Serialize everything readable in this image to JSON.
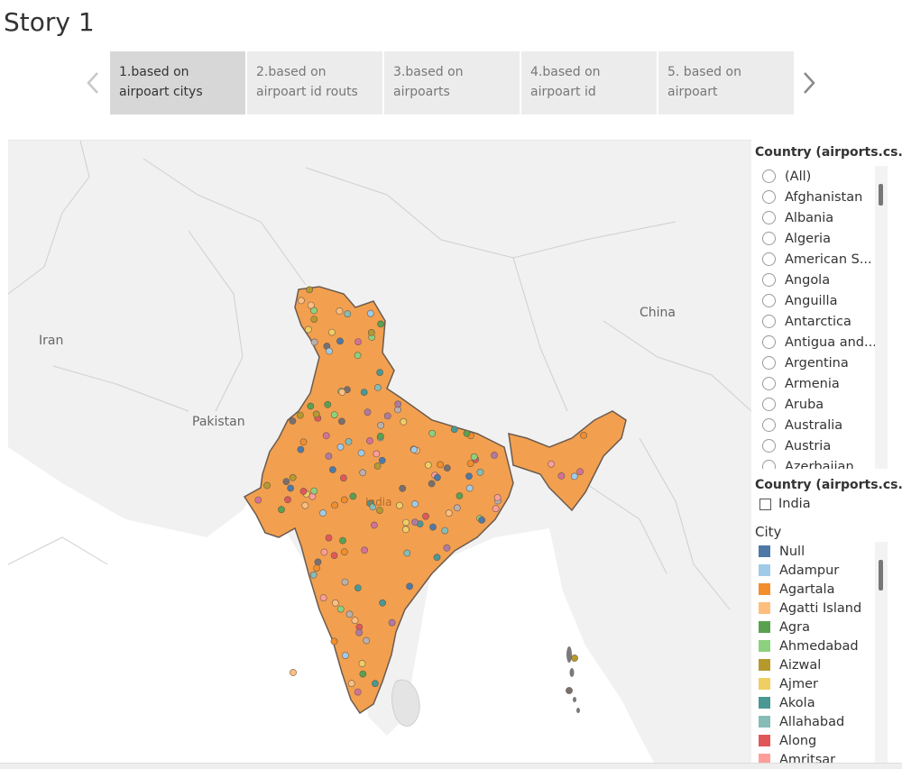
{
  "story": {
    "title": "Story 1"
  },
  "tabs": [
    {
      "line1": "1.based on",
      "line2": "airpoart citys",
      "active": true
    },
    {
      "line1": "2.based on",
      "line2": "airpoart id routs",
      "active": false
    },
    {
      "line1": "3.based on",
      "line2": "airpoarts",
      "active": false
    },
    {
      "line1": "4.based on",
      "line2": "airpoart id",
      "active": false
    },
    {
      "line1": "5. based on",
      "line2": "airpoart",
      "active": false
    }
  ],
  "map": {
    "labels": {
      "iran": "Iran",
      "pakistan": "Pakistan",
      "china": "China",
      "india": "India"
    },
    "india_fill": "#f2a04f",
    "background": "#f1f1f1",
    "marker_colors": [
      "#4e79a7",
      "#a0cbe8",
      "#f28e2b",
      "#ffbe7d",
      "#59a14f",
      "#8cd17d",
      "#b6992d",
      "#f1ce63",
      "#499894",
      "#86bcb6",
      "#e15759",
      "#ff9d9a",
      "#79706e",
      "#bab0ac",
      "#d37295",
      "#b07aa1"
    ]
  },
  "filters": {
    "country_title": "Country (airports.cs..",
    "country_options": [
      "(All)",
      "Afghanistan",
      "Albania",
      "Algeria",
      "American S...",
      "Angola",
      "Anguilla",
      "Antarctica",
      "Antigua and...",
      "Argentina",
      "Armenia",
      "Aruba",
      "Australia",
      "Austria",
      "Azerbaijan"
    ],
    "country2_title": "Country (airports.cs..",
    "country2_value": "India"
  },
  "legend": {
    "title": "City",
    "items": [
      {
        "label": "Null",
        "color": "#4e79a7"
      },
      {
        "label": "Adampur",
        "color": "#a0cbe8"
      },
      {
        "label": "Agartala",
        "color": "#f28e2b"
      },
      {
        "label": "Agatti Island",
        "color": "#ffbe7d"
      },
      {
        "label": "Agra",
        "color": "#59a14f"
      },
      {
        "label": "Ahmedabad",
        "color": "#8cd17d"
      },
      {
        "label": "Aizwal",
        "color": "#b6992d"
      },
      {
        "label": "Ajmer",
        "color": "#f1ce63"
      },
      {
        "label": "Akola",
        "color": "#499894"
      },
      {
        "label": "Allahabad",
        "color": "#86bcb6"
      },
      {
        "label": "Along",
        "color": "#e15759"
      },
      {
        "label": "Amritsar",
        "color": "#ff9d9a"
      }
    ]
  }
}
